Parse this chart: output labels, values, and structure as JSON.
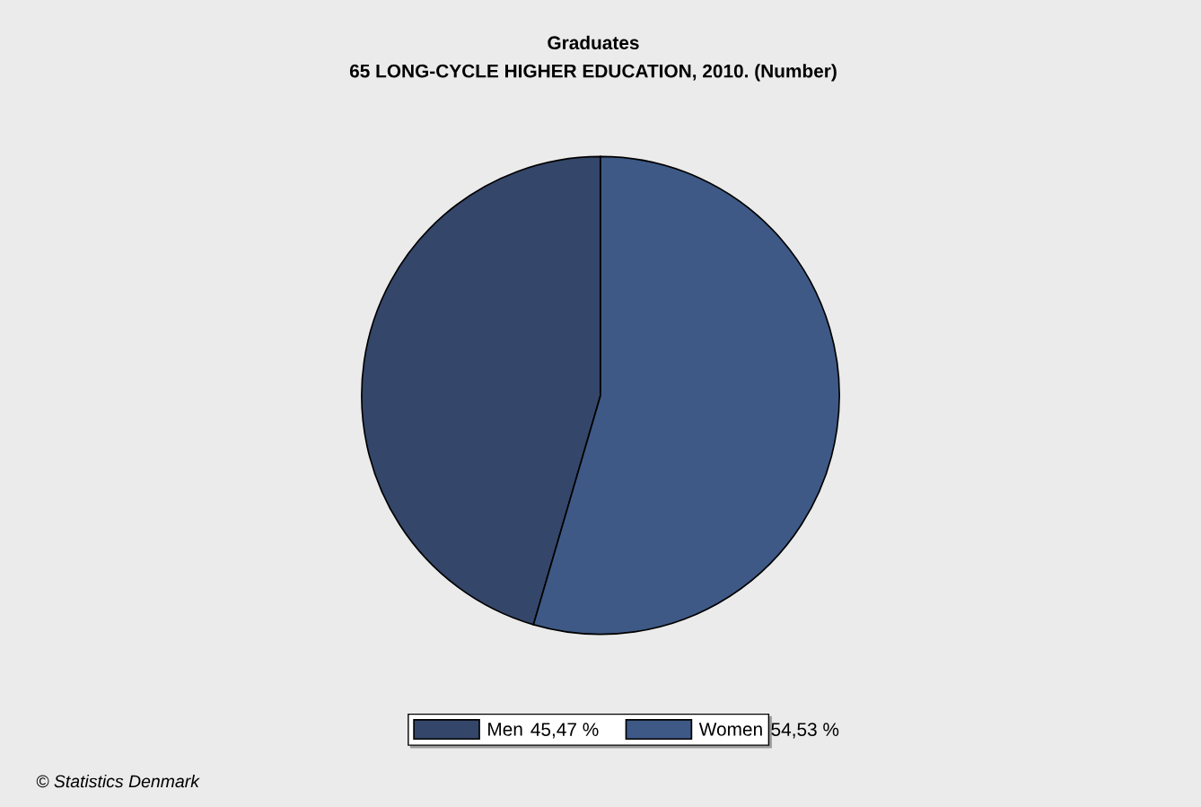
{
  "chart_data": {
    "type": "pie",
    "title": "Graduates",
    "subtitle": "65 LONG-CYCLE HIGHER EDUCATION, 2010. (Number)",
    "categories": [
      "Men",
      "Women"
    ],
    "values": [
      45.47,
      54.53
    ],
    "colors": [
      "#344669",
      "#3e5986"
    ],
    "legend": "bottom",
    "value_labels": [
      "45,47 %",
      "54,53 %"
    ],
    "annotations": [
      "© Statistics Denmark"
    ]
  }
}
